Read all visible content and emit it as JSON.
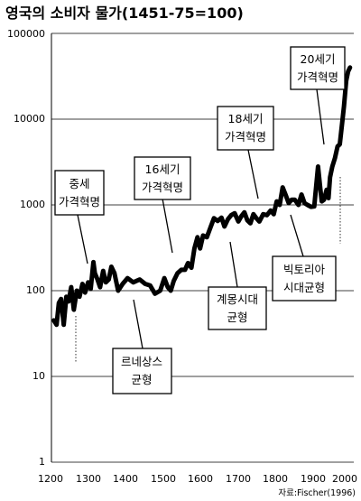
{
  "chart_data": {
    "type": "line",
    "title": "영국의 소비자 물가(1451-75=100)",
    "source": "자료:Fischer(1996)",
    "xlim": [
      1200,
      2000
    ],
    "ylim": [
      1,
      100000
    ],
    "yscale": "log",
    "grid": "horizontal",
    "x_ticks": [
      "1200",
      "1300",
      "1400",
      "1500",
      "1600",
      "1700",
      "1800",
      "1900",
      "2000"
    ],
    "y_ticks": [
      "1",
      "10",
      "100",
      "1000",
      "10000",
      "100000"
    ],
    "series": [
      {
        "x": [
          1209,
          1216,
          1222,
          1228,
          1235,
          1242,
          1248,
          1255,
          1262,
          1270,
          1277,
          1285,
          1292,
          1300,
          1307,
          1314,
          1318,
          1325,
          1332,
          1340,
          1347,
          1355,
          1362,
          1370,
          1380,
          1392,
          1405,
          1420,
          1437,
          1452,
          1465,
          1478,
          1492,
          1503,
          1512,
          1520,
          1528,
          1538,
          1548,
          1558,
          1566,
          1575,
          1583,
          1591,
          1598,
          1606,
          1616,
          1626,
          1635,
          1645,
          1655,
          1663,
          1672,
          1681,
          1690,
          1700,
          1708,
          1716,
          1724,
          1732,
          1740,
          1748,
          1756,
          1766,
          1776,
          1786,
          1794,
          1802,
          1810,
          1818,
          1826,
          1834,
          1842,
          1850,
          1860,
          1868,
          1876,
          1884,
          1893,
          1902,
          1912,
          1918,
          1922,
          1928,
          1935,
          1940,
          1944,
          1950,
          1957,
          1964,
          1970,
          1976,
          1981,
          1987,
          1992,
          1997
        ],
        "y": [
          45,
          40,
          72,
          80,
          40,
          85,
          75,
          110,
          60,
          100,
          85,
          120,
          95,
          125,
          105,
          215,
          160,
          135,
          110,
          170,
          125,
          135,
          190,
          160,
          100,
          120,
          140,
          125,
          135,
          120,
          115,
          92,
          100,
          140,
          110,
          100,
          130,
          160,
          175,
          175,
          210,
          185,
          310,
          420,
          310,
          440,
          420,
          550,
          700,
          650,
          710,
          560,
          680,
          760,
          800,
          640,
          740,
          820,
          660,
          610,
          780,
          700,
          640,
          780,
          760,
          860,
          780,
          1100,
          1000,
          1600,
          1300,
          1050,
          1150,
          1150,
          1000,
          1320,
          1050,
          1000,
          950,
          960,
          2800,
          1550,
          1100,
          1150,
          1500,
          1200,
          2100,
          2800,
          3500,
          4800,
          5100,
          8800,
          14000,
          28000,
          36000,
          40000
        ]
      }
    ],
    "annotations": [
      {
        "lines": [
          "중세",
          "가격혁명"
        ]
      },
      {
        "lines": [
          "16세기",
          "가격혁명"
        ]
      },
      {
        "lines": [
          "18세기",
          "가격혁명"
        ]
      },
      {
        "lines": [
          "20세기",
          "가격혁명"
        ]
      },
      {
        "lines": [
          "르네상스",
          "균형"
        ]
      },
      {
        "lines": [
          "계몽시대",
          "균형"
        ]
      },
      {
        "lines": [
          "빅토리아",
          "시대균형"
        ]
      }
    ]
  }
}
